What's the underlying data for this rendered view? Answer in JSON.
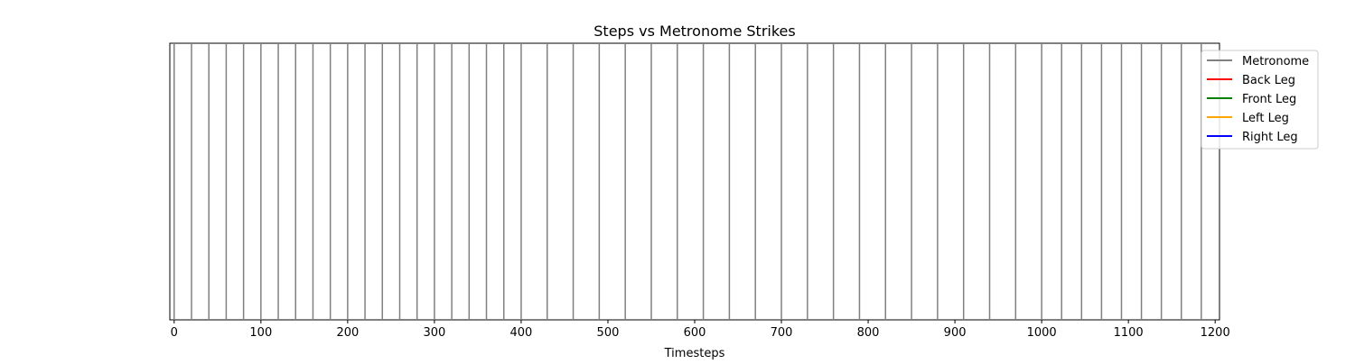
{
  "chart_data": {
    "type": "line",
    "title": "Steps vs Metronome Strikes",
    "xlabel": "Timesteps",
    "ylabel": "",
    "xlim": [
      -5,
      1205
    ],
    "xticks": [
      0,
      100,
      200,
      300,
      400,
      500,
      600,
      700,
      800,
      900,
      1000,
      1100,
      1200
    ],
    "grid": false,
    "legend_position": "outside-top-right",
    "series": [
      {
        "name": "Metronome",
        "color": "#808080",
        "x": [
          0,
          20,
          40,
          60,
          80,
          100,
          120,
          140,
          160,
          180,
          200,
          220,
          240,
          260,
          280,
          300,
          320,
          340,
          360,
          380,
          400,
          430,
          460,
          490,
          520,
          550,
          580,
          610,
          640,
          670,
          700,
          730,
          760,
          790,
          820,
          850,
          880,
          910,
          940,
          970,
          1000,
          1023,
          1046,
          1069,
          1092,
          1115,
          1138,
          1161,
          1184
        ]
      },
      {
        "name": "Back Leg",
        "color": "#ff0000",
        "x": []
      },
      {
        "name": "Front Leg",
        "color": "#008000",
        "x": []
      },
      {
        "name": "Left Leg",
        "color": "#ffa500",
        "x": []
      },
      {
        "name": "Right Leg",
        "color": "#0000ff",
        "x": []
      }
    ]
  }
}
